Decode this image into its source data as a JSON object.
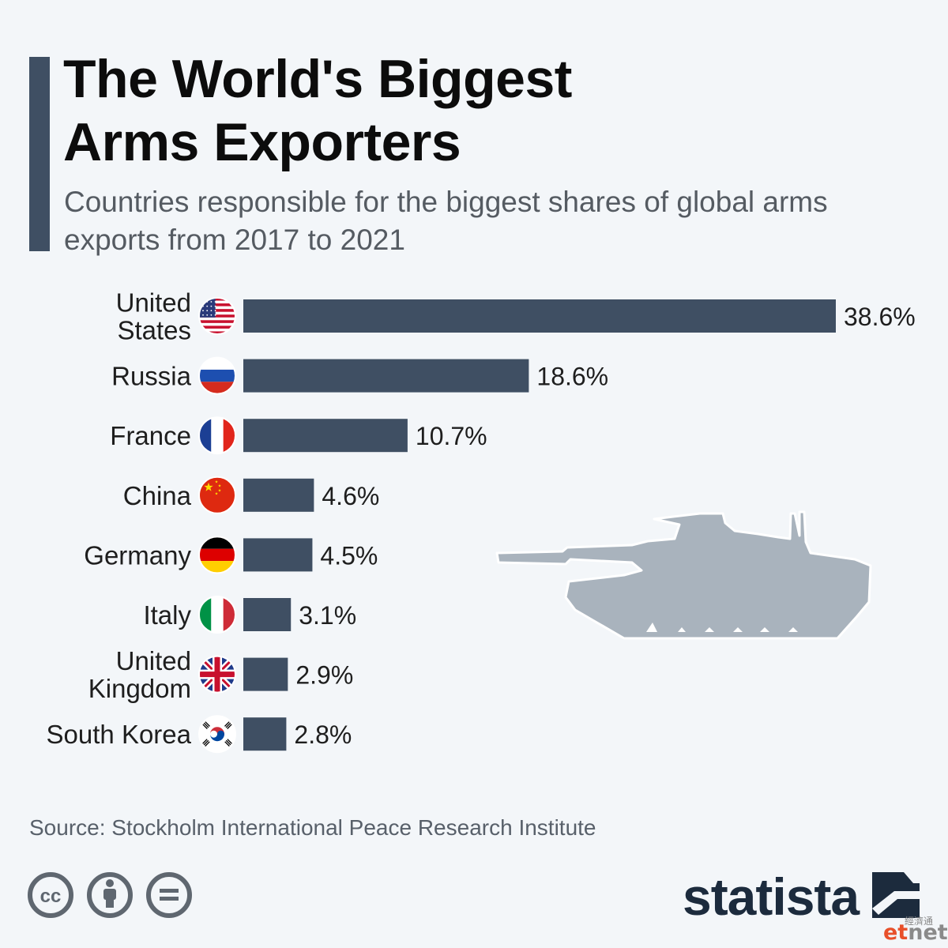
{
  "title_lines": [
    "The World's Biggest",
    "Arms Exporters"
  ],
  "subtitle_lines": [
    "Countries responsible for the biggest shares of global arms",
    "exports from 2017 to 2021"
  ],
  "source": "Source: Stockholm International Peace Research Institute",
  "brand": "statista",
  "watermark": {
    "cn": "經濟通",
    "et": "et",
    "net": "net"
  },
  "colors": {
    "bar": "#3f4f63",
    "tank": "#a9b3bd",
    "background": "#f3f6f9"
  },
  "chart_data": {
    "type": "bar",
    "orientation": "horizontal",
    "title": "The World's Biggest Arms Exporters",
    "subtitle": "Countries responsible for the biggest shares of global arms exports from 2017 to 2021",
    "categories": [
      {
        "label": [
          "United",
          "States"
        ],
        "flag": "us-flag-icon"
      },
      {
        "label": [
          "Russia"
        ],
        "flag": "russia-flag-icon"
      },
      {
        "label": [
          "France"
        ],
        "flag": "france-flag-icon"
      },
      {
        "label": [
          "China"
        ],
        "flag": "china-flag-icon"
      },
      {
        "label": [
          "Germany"
        ],
        "flag": "germany-flag-icon"
      },
      {
        "label": [
          "Italy"
        ],
        "flag": "italy-flag-icon"
      },
      {
        "label": [
          "United",
          "Kingdom"
        ],
        "flag": "uk-flag-icon"
      },
      {
        "label": [
          "South Korea"
        ],
        "flag": "south-korea-flag-icon"
      }
    ],
    "values": [
      38.6,
      18.6,
      10.7,
      4.6,
      4.5,
      3.1,
      2.9,
      2.8
    ],
    "value_labels": [
      "38.6%",
      "18.6%",
      "10.7%",
      "4.6%",
      "4.5%",
      "3.1%",
      "2.9%",
      "2.8%"
    ],
    "unit": "%",
    "xlim": [
      0,
      38.6
    ],
    "grid": false,
    "legend": "none"
  }
}
